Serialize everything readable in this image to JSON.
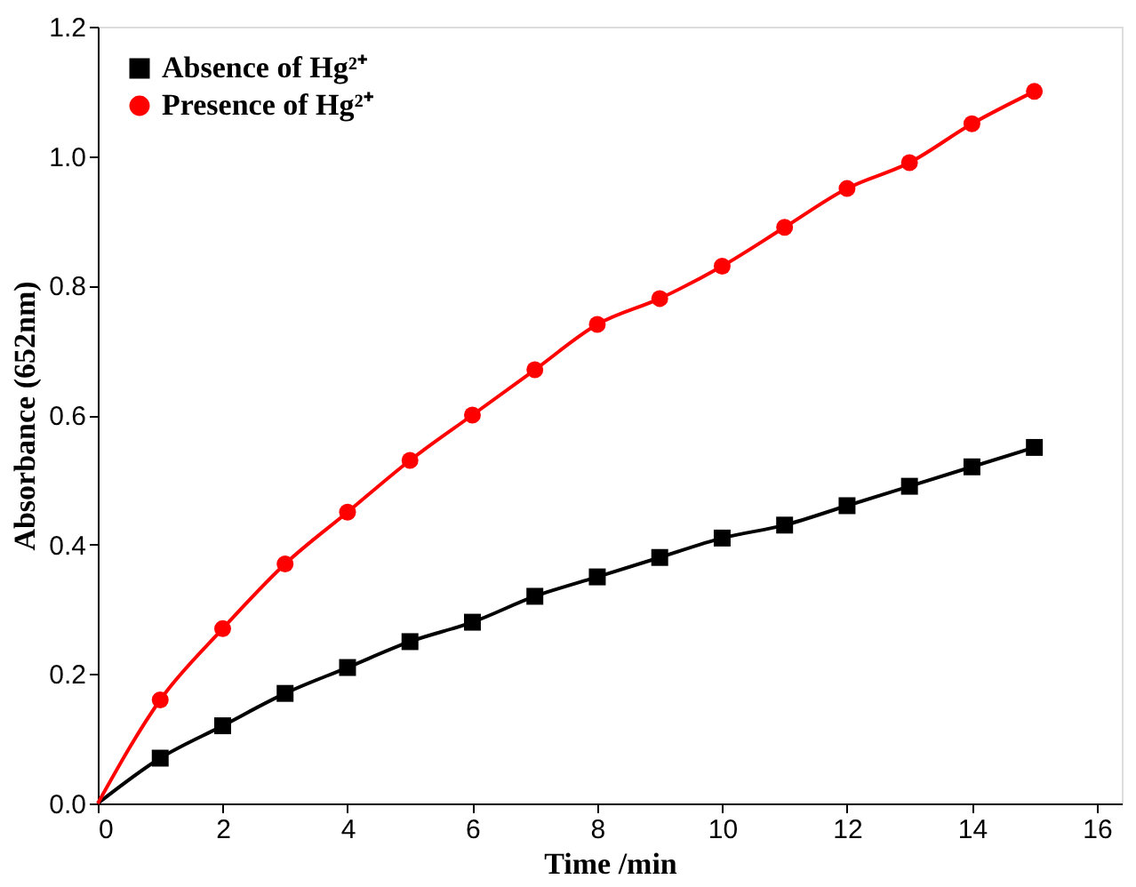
{
  "chart_data": {
    "type": "line",
    "xlabel": "Time /min",
    "ylabel": "Absorbance (652nm)",
    "x": [
      0,
      1,
      2,
      3,
      4,
      5,
      6,
      7,
      8,
      9,
      10,
      11,
      12,
      13,
      14,
      15
    ],
    "series": [
      {
        "name": "Absence of Hg²⁺",
        "color": "#000000",
        "marker": "square",
        "values": [
          0,
          0.07,
          0.12,
          0.17,
          0.21,
          0.25,
          0.28,
          0.32,
          0.35,
          0.38,
          0.41,
          0.43,
          0.46,
          0.49,
          0.52,
          0.55
        ]
      },
      {
        "name": "Presence of Hg²⁺",
        "color": "#ff0000",
        "marker": "circle",
        "values": [
          0,
          0.16,
          0.27,
          0.37,
          0.45,
          0.53,
          0.6,
          0.67,
          0.74,
          0.78,
          0.83,
          0.89,
          0.95,
          0.99,
          1.05,
          1.1
        ]
      }
    ],
    "xlim": [
      0,
      16.4
    ],
    "xticks": [
      0,
      2,
      4,
      6,
      8,
      10,
      12,
      14,
      16
    ],
    "ylim": [
      0,
      1.2
    ],
    "yticks": [
      {
        "value": 0,
        "label": "0.0"
      },
      {
        "value": 0.2,
        "label": "0.2"
      },
      {
        "value": 0.4,
        "label": "0.4"
      },
      {
        "value": 0.6,
        "label": "0.6"
      },
      {
        "value": 0.8,
        "label": "0.8"
      },
      {
        "value": 1.0,
        "label": "1.0"
      },
      {
        "value": 1.2,
        "label": "1.2"
      }
    ],
    "legend": "top left",
    "grid": false
  }
}
